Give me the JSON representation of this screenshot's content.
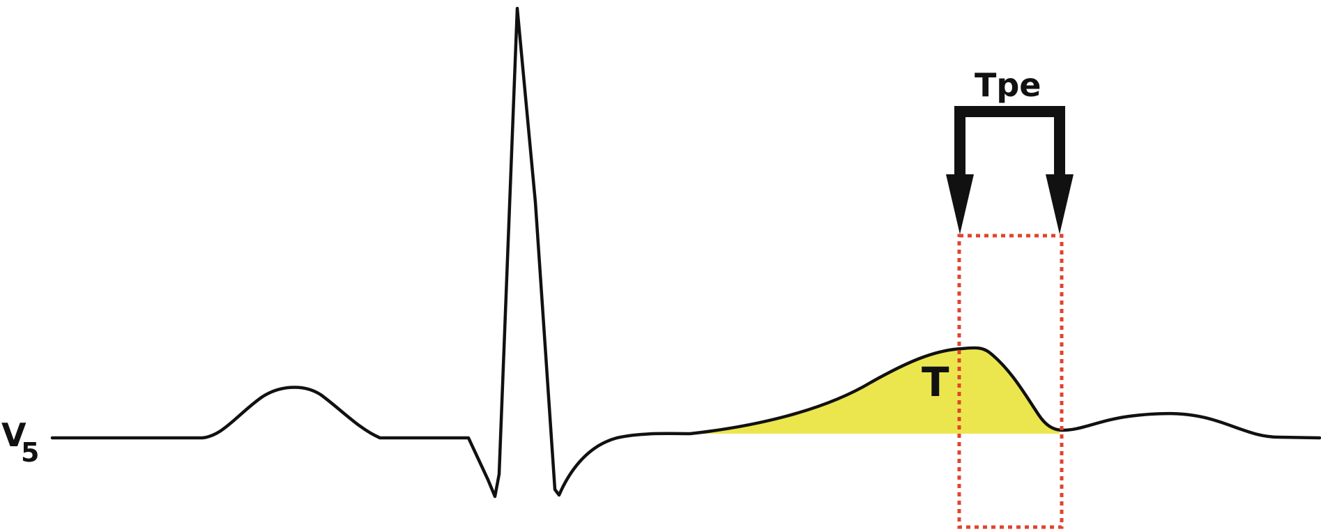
{
  "labels": {
    "lead": "V",
    "lead_subscript": "5",
    "t_wave": "T",
    "interval": "Tpe"
  },
  "colors": {
    "trace": "#111111",
    "t_wave_fill": "#ece64e",
    "interval_box": "#e0442f",
    "arrows": "#111111",
    "background": "#ffffff"
  }
}
